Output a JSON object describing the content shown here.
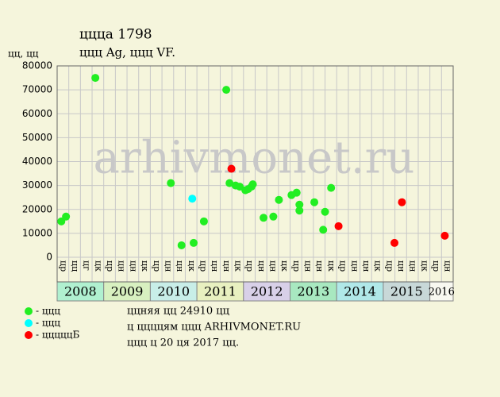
{
  "chart_data": {
    "type": "scatter",
    "title": "ццца 1798",
    "subtitle": "ццц Ag, ццц VF.",
    "y_label": "цц, цц",
    "watermark": "arhivmonet.ru",
    "notes": [
      "ццняя цц 24910 цц",
      "ц ццццям ццц ARHIVMONET.RU",
      "ццц ц 20 ця 2017 цц."
    ],
    "xlim": [
      2008,
      2016.5
    ],
    "ylim": [
      0,
      80000
    ],
    "yticks": [
      0,
      10000,
      20000,
      30000,
      40000,
      50000,
      60000,
      70000,
      80000
    ],
    "grid": true,
    "years": [
      {
        "label": "2008",
        "color": "#b0f0d0",
        "quarters": [
          "цр",
          "цц",
          "цг",
          "цк"
        ]
      },
      {
        "label": "2009",
        "color": "#d8f0c0",
        "quarters": [
          "цр",
          "цн",
          "цн",
          "цк"
        ]
      },
      {
        "label": "2010",
        "color": "#c8eee8",
        "quarters": [
          "цр",
          "цн",
          "цн",
          "цк"
        ]
      },
      {
        "label": "2011",
        "color": "#e8f0c0",
        "quarters": [
          "цр",
          "цн",
          "цн",
          "цк"
        ]
      },
      {
        "label": "2012",
        "color": "#d8d0e8",
        "quarters": [
          "цр",
          "цн",
          "цн",
          "цк"
        ]
      },
      {
        "label": "2013",
        "color": "#a8e8c0",
        "quarters": [
          "цр",
          "цн",
          "цн",
          "цк"
        ]
      },
      {
        "label": "2014",
        "color": "#b0e8e8",
        "quarters": [
          "цр",
          "цн",
          "цн",
          "цк"
        ]
      },
      {
        "label": "2015",
        "color": "#c8d8d8",
        "quarters": [
          "цр",
          "цн",
          "цн",
          "цк"
        ]
      },
      {
        "label": "2016",
        "color": "#f8f8f0",
        "quarters": [
          "цр",
          "цн"
        ]
      }
    ],
    "series": [
      {
        "name": "- ццц",
        "color": "#22ee22",
        "x": [
          2008.09,
          2008.19,
          2008.82,
          2010.44,
          2010.67,
          2010.93,
          2011.15,
          2011.63,
          2011.7,
          2011.83,
          2011.92,
          2012.04,
          2012.1,
          2012.17,
          2012.2,
          2012.43,
          2012.64,
          2012.76,
          2013.03,
          2013.14,
          2013.2,
          2013.2,
          2013.52,
          2013.71,
          2013.75,
          2013.88
        ],
        "values": [
          15000,
          17000,
          75000,
          31000,
          5000,
          6000,
          15000,
          70000,
          31000,
          30000,
          29500,
          28000,
          28500,
          29500,
          30500,
          16500,
          17000,
          24000,
          26000,
          27000,
          22000,
          19500,
          23000,
          11500,
          19000,
          29000
        ]
      },
      {
        "name": "- ццц",
        "color": "#00ffff",
        "x": [
          2010.9
        ],
        "values": [
          24500
        ]
      },
      {
        "name": "- цццццБ",
        "color": "#ff0000",
        "x": [
          2011.74,
          2014.04,
          2015.24,
          2015.4,
          2016.32
        ],
        "values": [
          37000,
          13000,
          6000,
          23000,
          9000
        ]
      }
    ]
  }
}
